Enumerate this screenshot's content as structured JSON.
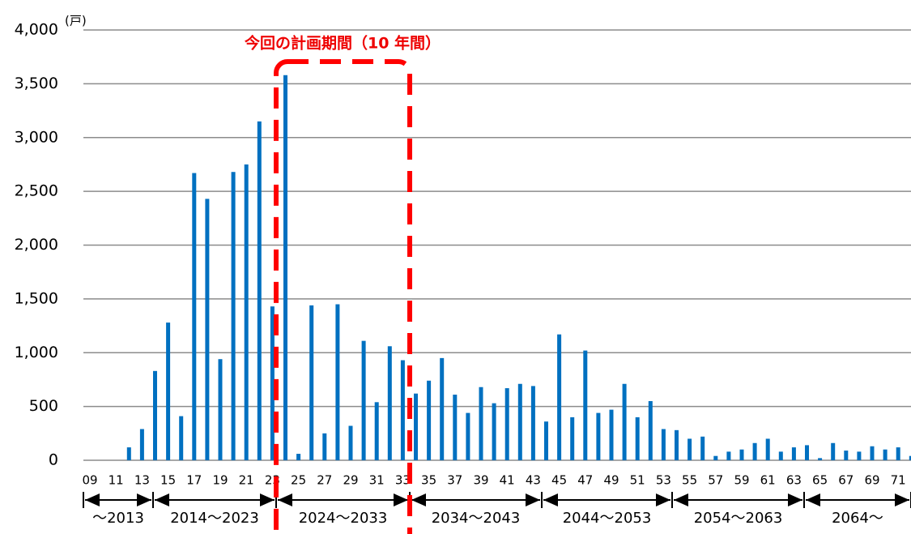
{
  "chart_data": {
    "type": "bar",
    "unit_label": "(戸)",
    "annotation": "今回の計画期間（10 年間）",
    "categories": [
      "09",
      null,
      "11",
      null,
      "13",
      null,
      "15",
      null,
      "17",
      null,
      "19",
      null,
      "21",
      null,
      "23",
      null,
      "25",
      null,
      "27",
      null,
      "29",
      null,
      "31",
      null,
      "33",
      null,
      "35",
      null,
      "37",
      null,
      "39",
      null,
      "41",
      null,
      "43",
      null,
      "45",
      null,
      "47",
      null,
      "49",
      null,
      "51",
      null,
      "53",
      null,
      "55",
      null,
      "57",
      null,
      "59",
      null,
      "61",
      null,
      "63",
      null,
      "65",
      null,
      "67",
      null,
      "69",
      null,
      "71",
      null
    ],
    "values": [
      0,
      0,
      0,
      120,
      290,
      830,
      1280,
      410,
      2670,
      2430,
      940,
      2680,
      2750,
      3150,
      1430,
      3580,
      60,
      1440,
      250,
      1450,
      320,
      1110,
      540,
      1060,
      930,
      620,
      740,
      950,
      610,
      440,
      680,
      530,
      670,
      710,
      690,
      360,
      1170,
      400,
      1020,
      440,
      470,
      710,
      400,
      550,
      290,
      280,
      200,
      220,
      40,
      80,
      100,
      160,
      200,
      80,
      120,
      140,
      20,
      160,
      90,
      80,
      130,
      100,
      120,
      40
    ],
    "color": "#0070c0",
    "ylim": [
      0,
      4000
    ],
    "yticks": [
      0,
      500,
      {
        "value": 1000,
        "label": "1,000"
      },
      {
        "value": 1500,
        "label": "1,500"
      },
      {
        "value": 2000,
        "label": "2,000"
      },
      {
        "value": 2500,
        "label": "2,500"
      },
      {
        "value": 3000,
        "label": "3,000"
      },
      {
        "value": 3500,
        "label": "3,500"
      },
      {
        "value": 4000,
        "label": "4,000"
      }
    ],
    "grid": true,
    "periods": [
      "～2013",
      "2014～2023",
      "2024～2033",
      "2034～2043",
      "2044～2053",
      "2054～2063",
      "2064～"
    ]
  }
}
